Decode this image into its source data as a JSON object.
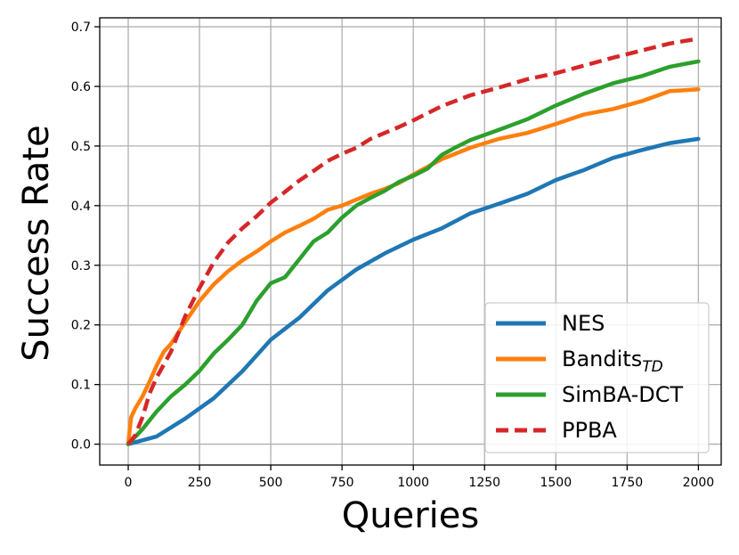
{
  "chart_data": {
    "type": "line",
    "xlabel": "Queries",
    "ylabel": "Success Rate",
    "xlim": [
      -100,
      2080
    ],
    "ylim": [
      -0.035,
      0.715
    ],
    "x_ticks": [
      "0",
      "250",
      "500",
      "750",
      "1000",
      "1250",
      "1500",
      "1750",
      "2000"
    ],
    "y_ticks": [
      "0.0",
      "0.1",
      "0.2",
      "0.3",
      "0.4",
      "0.5",
      "0.6",
      "0.7"
    ],
    "grid": true,
    "legend_position": "lower-right",
    "series": [
      {
        "name": "NES",
        "color": "#1f77b4",
        "dash": "solid",
        "x": [
          0,
          100,
          200,
          300,
          400,
          500,
          600,
          700,
          800,
          900,
          1000,
          1100,
          1200,
          1300,
          1400,
          1500,
          1600,
          1700,
          1800,
          1900,
          2000
        ],
        "y": [
          0.0,
          0.013,
          0.043,
          0.077,
          0.122,
          0.175,
          0.212,
          0.258,
          0.293,
          0.32,
          0.343,
          0.362,
          0.387,
          0.403,
          0.42,
          0.443,
          0.46,
          0.48,
          0.493,
          0.505,
          0.512
        ]
      },
      {
        "name": "Bandits",
        "name_subscript": "TD",
        "color": "#ff7f0e",
        "dash": "solid",
        "x": [
          0,
          10,
          25,
          50,
          75,
          100,
          125,
          150,
          200,
          250,
          300,
          350,
          400,
          450,
          500,
          550,
          600,
          650,
          700,
          750,
          800,
          850,
          900,
          950,
          1000,
          1100,
          1200,
          1300,
          1400,
          1500,
          1600,
          1700,
          1800,
          1900,
          2000
        ],
        "y": [
          0.0,
          0.045,
          0.06,
          0.08,
          0.105,
          0.132,
          0.155,
          0.168,
          0.205,
          0.24,
          0.268,
          0.29,
          0.308,
          0.323,
          0.34,
          0.355,
          0.366,
          0.378,
          0.393,
          0.4,
          0.41,
          0.42,
          0.428,
          0.438,
          0.452,
          0.478,
          0.497,
          0.512,
          0.522,
          0.537,
          0.553,
          0.562,
          0.575,
          0.592,
          0.595
        ]
      },
      {
        "name": "SimBA-DCT",
        "color": "#2ca02c",
        "dash": "solid",
        "x": [
          0,
          50,
          100,
          150,
          200,
          250,
          300,
          350,
          400,
          450,
          500,
          550,
          600,
          650,
          700,
          750,
          800,
          850,
          900,
          950,
          1000,
          1050,
          1100,
          1150,
          1200,
          1300,
          1400,
          1500,
          1600,
          1700,
          1800,
          1900,
          2000
        ],
        "y": [
          0.0,
          0.025,
          0.055,
          0.08,
          0.1,
          0.123,
          0.152,
          0.175,
          0.2,
          0.24,
          0.27,
          0.28,
          0.31,
          0.34,
          0.355,
          0.38,
          0.4,
          0.413,
          0.425,
          0.44,
          0.45,
          0.462,
          0.485,
          0.498,
          0.51,
          0.527,
          0.545,
          0.568,
          0.588,
          0.605,
          0.617,
          0.633,
          0.642
        ]
      },
      {
        "name": "PPBA",
        "color": "#d62728",
        "dash": "dashed",
        "x": [
          0,
          25,
          50,
          75,
          100,
          150,
          200,
          250,
          300,
          350,
          400,
          450,
          500,
          550,
          600,
          650,
          700,
          750,
          800,
          850,
          900,
          950,
          1000,
          1100,
          1200,
          1300,
          1400,
          1500,
          1600,
          1700,
          1800,
          1900,
          2000
        ],
        "y": [
          0.0,
          0.015,
          0.045,
          0.085,
          0.112,
          0.155,
          0.215,
          0.262,
          0.305,
          0.338,
          0.362,
          0.382,
          0.405,
          0.423,
          0.442,
          0.458,
          0.475,
          0.487,
          0.497,
          0.512,
          0.522,
          0.532,
          0.543,
          0.567,
          0.585,
          0.598,
          0.612,
          0.622,
          0.635,
          0.648,
          0.66,
          0.672,
          0.68
        ]
      }
    ]
  }
}
